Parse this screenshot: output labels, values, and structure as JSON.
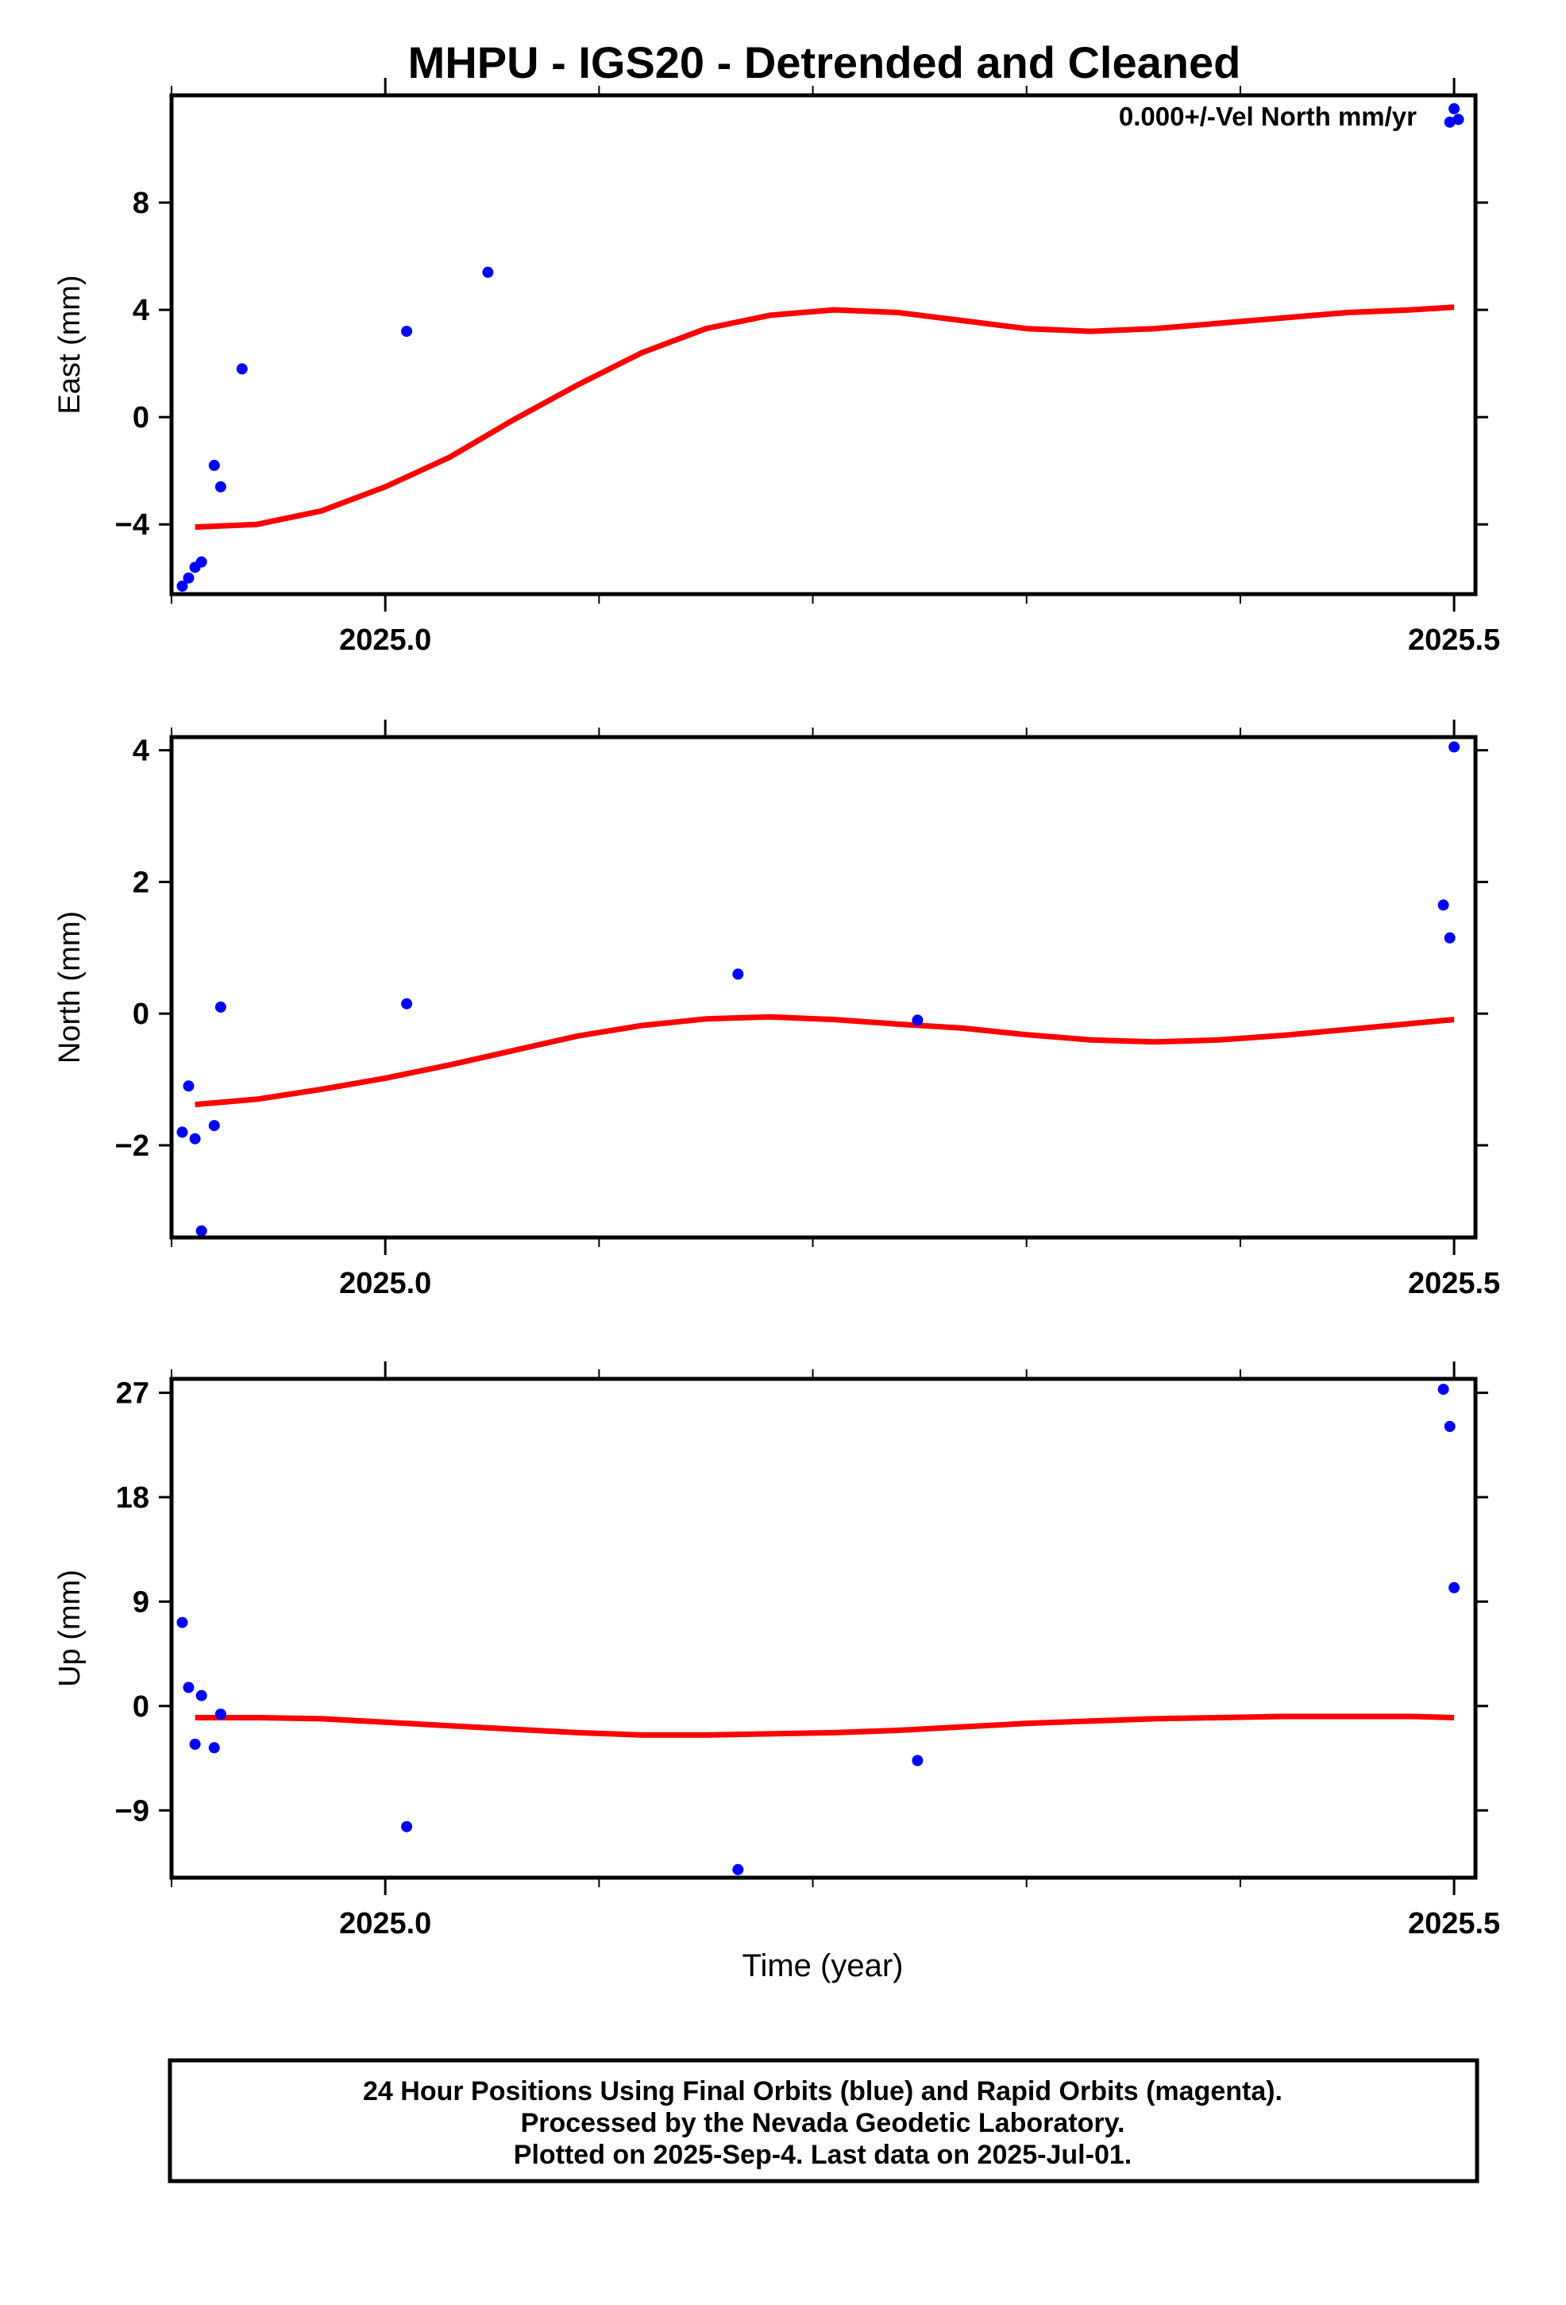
{
  "title": "MHPU - IGS20 - Detrended and Cleaned",
  "annotation": "0.000+/-Vel North mm/yr",
  "xlabel": "Time (year)",
  "footer": [
    "24 Hour Positions Using Final Orbits (blue) and Rapid Orbits (magenta).",
    "Processed by the Nevada Geodetic Laboratory.",
    "Plotted on 2025-Sep-4. Last data on 2025-Jul-01."
  ],
  "colors": {
    "points": "#0000ff",
    "fit": "#ff0000",
    "frame": "#000000"
  },
  "chart_data": [
    {
      "type": "scatter",
      "name": "east",
      "ylabel": "East (mm)",
      "xlim": [
        2024.9,
        2025.51
      ],
      "ylim": [
        -6.6,
        12.0
      ],
      "yticks": [
        -4,
        0,
        4,
        8
      ],
      "ytick_labels": [
        "−4",
        "0",
        "4",
        "8"
      ],
      "xticks": [
        2025.0,
        2025.5
      ],
      "xtick_labels": [
        "2025.0",
        "2025.5"
      ],
      "series": [
        {
          "name": "Final Orbits",
          "x": [
            2024.905,
            2024.908,
            2024.911,
            2024.914,
            2024.92,
            2024.923,
            2024.933,
            2025.01,
            2025.048,
            2025.498,
            2025.5,
            2025.502
          ],
          "y": [
            -6.3,
            -6.0,
            -5.6,
            -5.4,
            -1.8,
            -2.6,
            1.8,
            3.2,
            5.4,
            11.0,
            11.5,
            11.1
          ]
        }
      ],
      "fit": {
        "x": [
          2024.911,
          2024.94,
          2024.97,
          2025.0,
          2025.03,
          2025.06,
          2025.09,
          2025.12,
          2025.15,
          2025.18,
          2025.21,
          2025.24,
          2025.27,
          2025.3,
          2025.33,
          2025.36,
          2025.39,
          2025.42,
          2025.45,
          2025.48,
          2025.5
        ],
        "y": [
          -4.1,
          -4.0,
          -3.5,
          -2.6,
          -1.5,
          -0.1,
          1.2,
          2.4,
          3.3,
          3.8,
          4.0,
          3.9,
          3.6,
          3.3,
          3.2,
          3.3,
          3.5,
          3.7,
          3.9,
          4.0,
          4.1
        ]
      }
    },
    {
      "type": "scatter",
      "name": "north",
      "ylabel": "North (mm)",
      "xlim": [
        2024.9,
        2025.51
      ],
      "ylim": [
        -3.4,
        4.2
      ],
      "yticks": [
        -2,
        0,
        2,
        4
      ],
      "ytick_labels": [
        "−2",
        "0",
        "2",
        "4"
      ],
      "xticks": [
        2025.0,
        2025.5
      ],
      "xtick_labels": [
        "2025.0",
        "2025.5"
      ],
      "series": [
        {
          "name": "Final Orbits",
          "x": [
            2024.905,
            2024.908,
            2024.911,
            2024.914,
            2024.92,
            2024.923,
            2025.01,
            2025.165,
            2025.249,
            2025.495,
            2025.498,
            2025.5
          ],
          "y": [
            -1.8,
            -1.1,
            -1.9,
            -3.3,
            -1.7,
            0.1,
            0.15,
            0.6,
            -0.1,
            1.65,
            1.15,
            4.05
          ]
        }
      ],
      "fit": {
        "x": [
          2024.911,
          2024.94,
          2024.97,
          2025.0,
          2025.03,
          2025.06,
          2025.09,
          2025.12,
          2025.15,
          2025.18,
          2025.21,
          2025.24,
          2025.27,
          2025.3,
          2025.33,
          2025.36,
          2025.39,
          2025.42,
          2025.45,
          2025.48,
          2025.5
        ],
        "y": [
          -1.38,
          -1.3,
          -1.15,
          -0.98,
          -0.78,
          -0.56,
          -0.34,
          -0.18,
          -0.08,
          -0.05,
          -0.09,
          -0.16,
          -0.22,
          -0.32,
          -0.4,
          -0.43,
          -0.4,
          -0.33,
          -0.24,
          -0.15,
          -0.09
        ]
      }
    },
    {
      "type": "scatter",
      "name": "up",
      "ylabel": "Up (mm)",
      "xlim": [
        2024.9,
        2025.51
      ],
      "ylim": [
        -14.8,
        28.2
      ],
      "yticks": [
        -9,
        0,
        9,
        18,
        27
      ],
      "ytick_labels": [
        "−9",
        "0",
        "9",
        "18",
        "27"
      ],
      "xticks": [
        2025.0,
        2025.5
      ],
      "xtick_labels": [
        "2025.0",
        "2025.5"
      ],
      "series": [
        {
          "name": "Final Orbits",
          "x": [
            2024.905,
            2024.908,
            2024.911,
            2024.914,
            2024.92,
            2024.923,
            2025.01,
            2025.165,
            2025.249,
            2025.495,
            2025.498,
            2025.5
          ],
          "y": [
            7.2,
            1.6,
            -3.3,
            0.9,
            -3.6,
            -0.7,
            -10.4,
            -14.1,
            -4.7,
            27.3,
            24.1,
            10.2
          ]
        }
      ],
      "fit": {
        "x": [
          2024.911,
          2024.94,
          2024.97,
          2025.0,
          2025.03,
          2025.06,
          2025.09,
          2025.12,
          2025.15,
          2025.18,
          2025.21,
          2025.24,
          2025.27,
          2025.3,
          2025.33,
          2025.36,
          2025.39,
          2025.42,
          2025.45,
          2025.48,
          2025.5
        ],
        "y": [
          -1.0,
          -1.0,
          -1.1,
          -1.4,
          -1.7,
          -2.0,
          -2.3,
          -2.5,
          -2.5,
          -2.4,
          -2.3,
          -2.1,
          -1.8,
          -1.5,
          -1.3,
          -1.1,
          -1.0,
          -0.9,
          -0.9,
          -0.9,
          -1.0
        ]
      }
    }
  ]
}
